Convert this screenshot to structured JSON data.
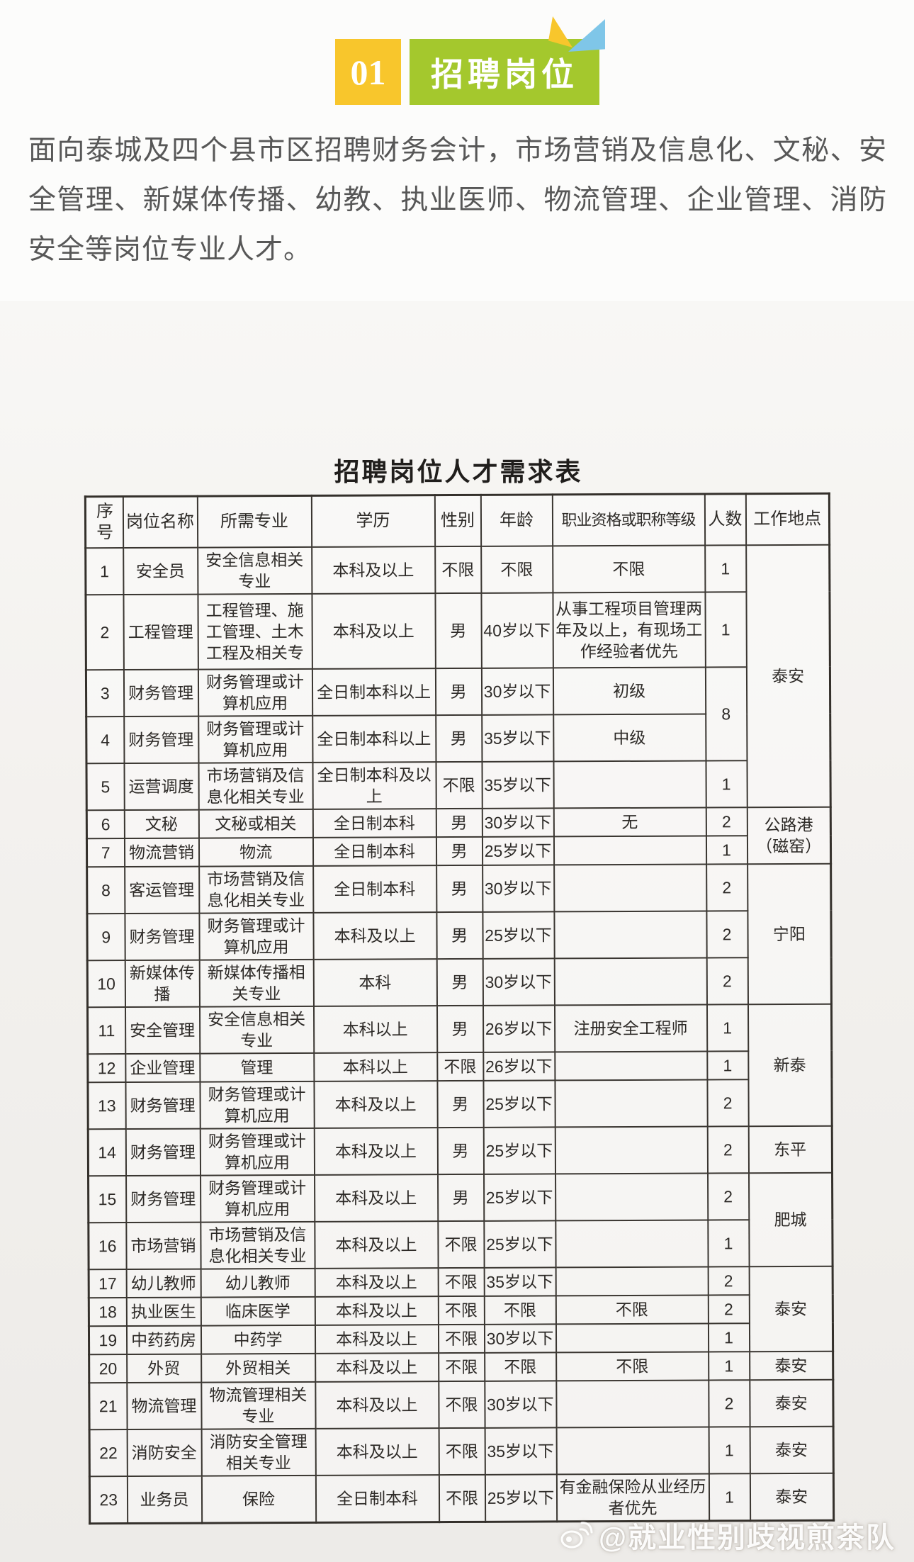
{
  "badge": {
    "number": "01",
    "title": "招聘岗位"
  },
  "intro": "面向泰城及四个县市区招聘财务会计，市场营销及信息化、文秘、安全管理、新媒体传播、幼教、执业医师、物流管理、企业管理、消防安全等岗位专业人才。",
  "colors": {
    "badge_yellow": "#f8c62c",
    "badge_green": "#a4c82d",
    "triangle_blue": "#7fc6e8",
    "intro_text": "#575757",
    "table_border": "#3a3631"
  },
  "table": {
    "title": "招聘岗位人才需求表",
    "headers": [
      "序号",
      "岗位名称",
      "所需专业",
      "学历",
      "性别",
      "年龄",
      "职业资格或职称等级",
      "人数",
      "工作地点"
    ],
    "rows": [
      {
        "no": "1",
        "name": "安全员",
        "major": "安全信息相关专业",
        "degree": "本科及以上",
        "gender": "不限",
        "age": "不限",
        "qual": "不限",
        "count": "1",
        "count_span": 1,
        "location": "泰安",
        "location_span": 5,
        "lines": 2
      },
      {
        "no": "2",
        "name": "工程管理",
        "major": "工程管理、施工管理、土木工程及相关专",
        "degree": "本科及以上",
        "gender": "男",
        "age": "40岁以下",
        "qual": "从事工程项目管理两年及以上，有现场工作经验者优先",
        "count": "1",
        "count_span": 1,
        "location": null,
        "location_span": 0,
        "lines": 3
      },
      {
        "no": "3",
        "name": "财务管理",
        "major": "财务管理或计算机应用",
        "degree": "全日制本科以上",
        "gender": "男",
        "age": "30岁以下",
        "qual": "初级",
        "count": "8",
        "count_span": 2,
        "location": null,
        "location_span": 0,
        "lines": 2
      },
      {
        "no": "4",
        "name": "财务管理",
        "major": "财务管理或计算机应用",
        "degree": "全日制本科以上",
        "gender": "男",
        "age": "35岁以下",
        "qual": "中级",
        "count": null,
        "count_span": 0,
        "location": null,
        "location_span": 0,
        "lines": 2
      },
      {
        "no": "5",
        "name": "运营调度",
        "major": "市场营销及信息化相关专业",
        "degree": "全日制本科及以上",
        "gender": "不限",
        "age": "35岁以下",
        "qual": "",
        "count": "1",
        "count_span": 1,
        "location": null,
        "location_span": 0,
        "lines": 2
      },
      {
        "no": "6",
        "name": "文秘",
        "major": "文秘或相关",
        "degree": "全日制本科",
        "gender": "男",
        "age": "30岁以下",
        "qual": "无",
        "count": "2",
        "count_span": 1,
        "location": "公路港（磁窑）",
        "location_span": 2,
        "lines": 1
      },
      {
        "no": "7",
        "name": "物流营销",
        "major": "物流",
        "degree": "全日制本科",
        "gender": "男",
        "age": "25岁以下",
        "qual": "",
        "count": "1",
        "count_span": 1,
        "location": null,
        "location_span": 0,
        "lines": 1
      },
      {
        "no": "8",
        "name": "客运管理",
        "major": "市场营销及信息化相关专业",
        "degree": "全日制本科",
        "gender": "男",
        "age": "30岁以下",
        "qual": "",
        "count": "2",
        "count_span": 1,
        "location": "宁阳",
        "location_span": 3,
        "lines": 2
      },
      {
        "no": "9",
        "name": "财务管理",
        "major": "财务管理或计算机应用",
        "degree": "本科及以上",
        "gender": "男",
        "age": "25岁以下",
        "qual": "",
        "count": "2",
        "count_span": 1,
        "location": null,
        "location_span": 0,
        "lines": 2
      },
      {
        "no": "10",
        "name": "新媒体传播",
        "major": "新媒体传播相关专业",
        "degree": "本科",
        "gender": "男",
        "age": "30岁以下",
        "qual": "",
        "count": "2",
        "count_span": 1,
        "location": null,
        "location_span": 0,
        "lines": 2
      },
      {
        "no": "11",
        "name": "安全管理",
        "major": "安全信息相关专业",
        "degree": "本科以上",
        "gender": "男",
        "age": "26岁以下",
        "qual": "注册安全工程师",
        "count": "1",
        "count_span": 1,
        "location": "新泰",
        "location_span": 3,
        "lines": 2
      },
      {
        "no": "12",
        "name": "企业管理",
        "major": "管理",
        "degree": "本科以上",
        "gender": "不限",
        "age": "26岁以下",
        "qual": "",
        "count": "1",
        "count_span": 1,
        "location": null,
        "location_span": 0,
        "lines": 1
      },
      {
        "no": "13",
        "name": "财务管理",
        "major": "财务管理或计算机应用",
        "degree": "本科及以上",
        "gender": "男",
        "age": "25岁以下",
        "qual": "",
        "count": "2",
        "count_span": 1,
        "location": null,
        "location_span": 0,
        "lines": 2
      },
      {
        "no": "14",
        "name": "财务管理",
        "major": "财务管理或计算机应用",
        "degree": "本科及以上",
        "gender": "男",
        "age": "25岁以下",
        "qual": "",
        "count": "2",
        "count_span": 1,
        "location": "东平",
        "location_span": 1,
        "lines": 2
      },
      {
        "no": "15",
        "name": "财务管理",
        "major": "财务管理或计算机应用",
        "degree": "本科及以上",
        "gender": "男",
        "age": "25岁以下",
        "qual": "",
        "count": "2",
        "count_span": 1,
        "location": "肥城",
        "location_span": 2,
        "lines": 2
      },
      {
        "no": "16",
        "name": "市场营销",
        "major": "市场营销及信息化相关专业",
        "degree": "本科及以上",
        "gender": "不限",
        "age": "25岁以下",
        "qual": "",
        "count": "1",
        "count_span": 1,
        "location": null,
        "location_span": 0,
        "lines": 2
      },
      {
        "no": "17",
        "name": "幼儿教师",
        "major": "幼儿教师",
        "degree": "本科及以上",
        "gender": "不限",
        "age": "35岁以下",
        "qual": "",
        "count": "2",
        "count_span": 1,
        "location": "泰安",
        "location_span": 3,
        "lines": 1
      },
      {
        "no": "18",
        "name": "执业医生",
        "major": "临床医学",
        "degree": "本科及以上",
        "gender": "不限",
        "age": "不限",
        "qual": "不限",
        "count": "2",
        "count_span": 1,
        "location": null,
        "location_span": 0,
        "lines": 1
      },
      {
        "no": "19",
        "name": "中药药房",
        "major": "中药学",
        "degree": "本科及以上",
        "gender": "不限",
        "age": "30岁以下",
        "qual": "",
        "count": "1",
        "count_span": 1,
        "location": null,
        "location_span": 0,
        "lines": 1
      },
      {
        "no": "20",
        "name": "外贸",
        "major": "外贸相关",
        "degree": "本科及以上",
        "gender": "不限",
        "age": "不限",
        "qual": "不限",
        "count": "1",
        "count_span": 1,
        "location": "泰安",
        "location_span": 1,
        "lines": 1
      },
      {
        "no": "21",
        "name": "物流管理",
        "major": "物流管理相关专业",
        "degree": "本科及以上",
        "gender": "不限",
        "age": "30岁以下",
        "qual": "",
        "count": "2",
        "count_span": 1,
        "location": "泰安",
        "location_span": 1,
        "lines": 2
      },
      {
        "no": "22",
        "name": "消防安全",
        "major": "消防安全管理相关专业",
        "degree": "本科及以上",
        "gender": "不限",
        "age": "35岁以下",
        "qual": "",
        "count": "1",
        "count_span": 1,
        "location": "泰安",
        "location_span": 1,
        "lines": 2
      },
      {
        "no": "23",
        "name": "业务员",
        "major": "保险",
        "degree": "全日制本科",
        "gender": "不限",
        "age": "25岁以下",
        "qual": "有金融保险从业经历者优先",
        "count": "1",
        "count_span": 1,
        "location": "泰安",
        "location_span": 1,
        "lines": 2
      }
    ]
  },
  "watermark": {
    "icon": "weibo-icon",
    "handle": "@就业性别歧视煎茶队"
  }
}
